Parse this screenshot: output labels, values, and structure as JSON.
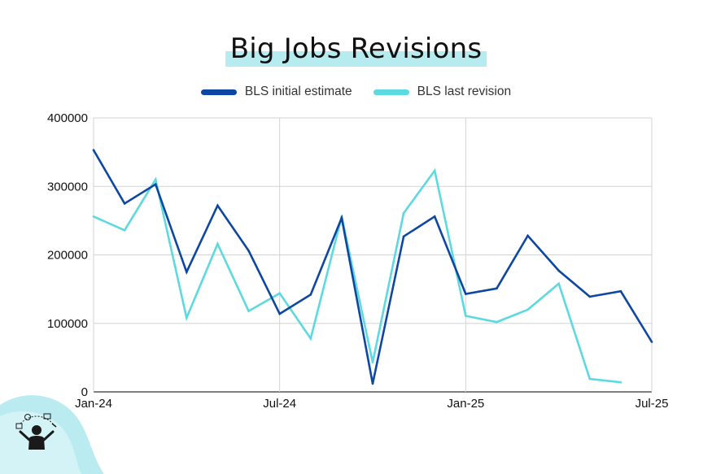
{
  "title": "Big Jobs Revisions",
  "colors": {
    "initial": "#0d47a1",
    "revision": "#5dd9e0",
    "grid": "#d3d3d3",
    "title_highlight": "#b6ecef",
    "blob": "#b9ebf0"
  },
  "legend": [
    {
      "label": "BLS initial estimate",
      "color": "#0d47a1"
    },
    {
      "label": "BLS last revision",
      "color": "#5dd9e0"
    }
  ],
  "chart_data": {
    "type": "line",
    "title": "Big Jobs Revisions",
    "xlabel": "",
    "ylabel": "",
    "x": [
      "2024-01",
      "2024-02",
      "2024-03",
      "2024-04",
      "2024-05",
      "2024-06",
      "2024-07",
      "2024-08",
      "2024-09",
      "2024-10",
      "2024-11",
      "2024-12",
      "2025-01",
      "2025-02",
      "2025-03",
      "2025-04",
      "2025-05",
      "2025-06",
      "2025-07"
    ],
    "x_tick_labels": [
      "Jan-24",
      "Jul-24",
      "Jan-25",
      "Jul-25"
    ],
    "x_tick_dates": [
      "2024-01",
      "2024-07",
      "2025-01",
      "2025-07"
    ],
    "ylim": [
      0,
      400000
    ],
    "y_tick_labels": [
      "0",
      "100000",
      "200000",
      "300000",
      "400000"
    ],
    "y_ticks": [
      0,
      100000,
      200000,
      300000,
      400000
    ],
    "grid": true,
    "legend_position": "top-center",
    "series": [
      {
        "name": "BLS initial estimate",
        "color": "#0d47a1",
        "values": [
          353000,
          275000,
          303000,
          175000,
          272000,
          206000,
          114000,
          142000,
          254000,
          12000,
          227000,
          256000,
          143000,
          151000,
          228000,
          177000,
          139000,
          147000,
          73000
        ]
      },
      {
        "name": "BLS last revision",
        "color": "#5dd9e0",
        "values": [
          256000,
          236000,
          310000,
          108000,
          216000,
          118000,
          144000,
          78000,
          256000,
          43000,
          261000,
          323000,
          111000,
          102000,
          120000,
          158000,
          19000,
          14000,
          null
        ]
      }
    ]
  }
}
